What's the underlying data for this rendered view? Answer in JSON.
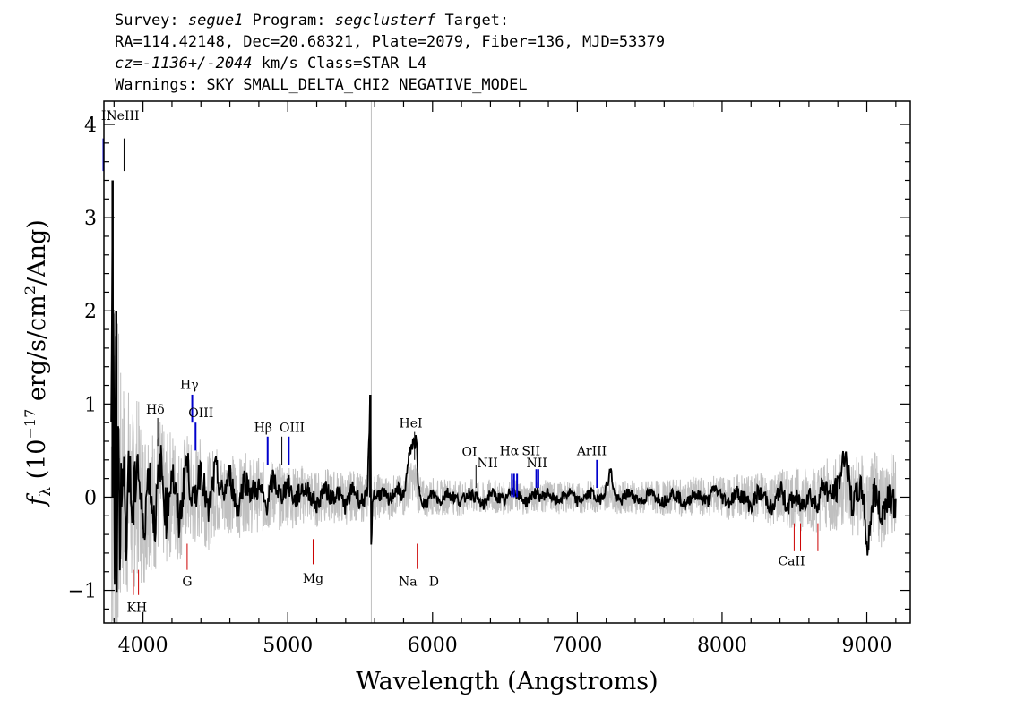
{
  "header": {
    "line1": {
      "survey_label": "Survey: ",
      "survey": "segue1",
      "program_label": " Program: ",
      "program": "segclusterf",
      "target_label": " Target:"
    },
    "line2": "RA=114.42148, Dec=20.68321, Plate=2079, Fiber=136, MJD=53379",
    "line3": {
      "cz": "cz=-1136+/-2044",
      "rest": " km/s Class=STAR L4"
    },
    "line4": "Warnings: SKY SMALL_DELTA_CHI2 NEGATIVE_MODEL"
  },
  "chart_data": {
    "type": "line",
    "xlabel": "Wavelength (Angstroms)",
    "ylabel_parts": {
      "f": "f",
      "sub": "λ",
      "pre": " (10",
      "exp": "−17",
      "mid": " erg/s/cm",
      "exp2": "2",
      "post": "/Ang)"
    },
    "xlim": [
      3730,
      9300
    ],
    "ylim": [
      -1.35,
      4.25
    ],
    "xticks": [
      4000,
      5000,
      6000,
      7000,
      8000,
      9000
    ],
    "yticks": [
      -1,
      0,
      1,
      2,
      3,
      4
    ],
    "ytick_labels": [
      "−1",
      "0",
      "1",
      "2",
      "3",
      "4"
    ],
    "sky_line_x": 5577,
    "colors": {
      "flux": "#000000",
      "error": "#c0c0c0",
      "emission": "#0000cc",
      "absorption": "#cc0000",
      "neutral": "#000000"
    },
    "series": [
      {
        "style": "error-band",
        "x": [
          3800,
          3850,
          3900,
          3950,
          4000,
          4100,
          4200,
          4300,
          4400,
          4600,
          4800,
          5000,
          5200,
          5400,
          5600,
          5800,
          6000,
          6500,
          7000,
          7500,
          8000,
          8300,
          8600,
          8900,
          9200
        ],
        "values": [
          2.6,
          1.3,
          1.1,
          1.0,
          0.9,
          0.75,
          0.7,
          0.6,
          0.55,
          0.45,
          0.4,
          0.35,
          0.3,
          0.28,
          0.25,
          0.22,
          0.2,
          0.18,
          0.17,
          0.18,
          0.22,
          0.28,
          0.35,
          0.45,
          0.5
        ]
      },
      {
        "style": "flux",
        "x": [
          3780,
          3790,
          3800,
          3805,
          3810,
          3815,
          3820,
          3830,
          3840,
          3860,
          3880,
          3900,
          3930,
          3960,
          4000,
          4040,
          4080,
          4120,
          4160,
          4200,
          4250,
          4300,
          4350,
          4400,
          4450,
          4500,
          4550,
          4600,
          4650,
          4700,
          4750,
          4800,
          4850,
          4900,
          4950,
          5000,
          5050,
          5100,
          5150,
          5200,
          5250,
          5300,
          5350,
          5400,
          5450,
          5500,
          5550,
          5570,
          5577,
          5585,
          5600,
          5650,
          5700,
          5750,
          5800,
          5850,
          5890,
          5900,
          5950,
          6000,
          6050,
          6100,
          6150,
          6200,
          6250,
          6300,
          6350,
          6400,
          6450,
          6500,
          6550,
          6600,
          6650,
          6700,
          6750,
          6800,
          6850,
          6900,
          6950,
          7000,
          7050,
          7100,
          7150,
          7200,
          7230,
          7260,
          7300,
          7350,
          7400,
          7450,
          7500,
          7550,
          7600,
          7650,
          7700,
          7750,
          7800,
          7850,
          7900,
          7950,
          8000,
          8050,
          8100,
          8150,
          8200,
          8250,
          8300,
          8350,
          8400,
          8450,
          8500,
          8550,
          8600,
          8650,
          8700,
          8750,
          8800,
          8850,
          8900,
          8950,
          8980,
          9000,
          9050,
          9100,
          9150,
          9200
        ],
        "values": [
          0.1,
          3.4,
          0.8,
          -0.5,
          1.0,
          2.0,
          -0.6,
          0.7,
          -0.4,
          0.6,
          -0.5,
          0.4,
          -0.3,
          0.5,
          -0.4,
          0.3,
          -0.3,
          0.4,
          -0.2,
          0.3,
          -0.3,
          0.4,
          -0.1,
          0.35,
          -0.2,
          0.3,
          0.0,
          0.25,
          -0.15,
          0.2,
          0.05,
          0.1,
          -0.1,
          0.2,
          0.0,
          0.15,
          -0.05,
          0.1,
          0.05,
          -0.1,
          0.1,
          0.0,
          0.05,
          -0.1,
          0.1,
          -0.05,
          0.0,
          1.1,
          -0.7,
          0.05,
          0.0,
          0.05,
          -0.05,
          0.1,
          0.0,
          0.55,
          0.6,
          0.1,
          -0.1,
          0.05,
          -0.05,
          0.05,
          0.0,
          -0.05,
          0.05,
          0.0,
          -0.1,
          0.05,
          0.0,
          -0.05,
          0.1,
          0.0,
          -0.05,
          0.05,
          0.0,
          0.05,
          -0.05,
          0.0,
          0.05,
          -0.05,
          0.0,
          0.05,
          -0.05,
          0.1,
          0.3,
          0.0,
          -0.05,
          0.05,
          0.0,
          -0.05,
          0.05,
          0.0,
          -0.05,
          0.05,
          0.0,
          -0.1,
          0.05,
          0.0,
          -0.05,
          0.1,
          0.0,
          -0.05,
          0.05,
          0.0,
          -0.1,
          0.05,
          0.0,
          -0.15,
          0.1,
          -0.1,
          0.0,
          -0.1,
          0.05,
          -0.1,
          0.15,
          0.0,
          0.1,
          0.5,
          -0.1,
          0.1,
          0.0,
          -0.6,
          0.1,
          -0.2,
          0.05,
          -0.1
        ]
      }
    ],
    "line_markers": [
      {
        "label": "II",
        "x": 3727,
        "y0": 3.5,
        "y1": 3.85,
        "kind": "emission",
        "lx": 3745,
        "ly": 4.05
      },
      {
        "label": "NeIII",
        "x": 3869,
        "y0": 3.5,
        "y1": 3.85,
        "kind": "neutral",
        "lx": 3860,
        "ly": 4.05
      },
      {
        "label": "Hδ",
        "x": 4102,
        "y0": 0.55,
        "y1": 0.85,
        "kind": "neutral",
        "lx": 4085,
        "ly": 0.9
      },
      {
        "label": "Hγ",
        "x": 4340,
        "y0": 0.8,
        "y1": 1.1,
        "kind": "emission",
        "lx": 4320,
        "ly": 1.16
      },
      {
        "label": "OIII",
        "x": 4363,
        "y0": 0.5,
        "y1": 0.8,
        "kind": "emission",
        "lx": 4400,
        "ly": 0.86
      },
      {
        "label": "Hβ",
        "x": 4861,
        "y0": 0.35,
        "y1": 0.65,
        "kind": "emission",
        "lx": 4830,
        "ly": 0.7
      },
      {
        "label": "OIII",
        "x": 4959,
        "y0": 0.35,
        "y1": 0.65,
        "kind": "neutral",
        "lx": 5030,
        "ly": 0.7
      },
      {
        "label": "OIII",
        "x": 5007,
        "y0": 0.35,
        "y1": 0.65,
        "kind": "emission",
        "lx": null,
        "ly": null
      },
      {
        "label": "HeI",
        "x": 5876,
        "y0": 0.4,
        "y1": 0.7,
        "kind": "neutral",
        "lx": 5850,
        "ly": 0.75
      },
      {
        "label": "OI",
        "x": 6300,
        "y0": 0.1,
        "y1": 0.35,
        "kind": "neutral",
        "lx": 6255,
        "ly": 0.44
      },
      {
        "label": "NII",
        "x": 6548,
        "y0": 0.0,
        "y1": 0.25,
        "kind": "emission",
        "lx": 6380,
        "ly": 0.32
      },
      {
        "label": "Hα",
        "x": 6563,
        "y0": 0.0,
        "y1": 0.25,
        "kind": "emission",
        "lx": 6530,
        "ly": 0.45
      },
      {
        "label": "NII",
        "x": 6584,
        "y0": 0.0,
        "y1": 0.25,
        "kind": "emission",
        "lx": 6720,
        "ly": 0.32
      },
      {
        "label": "SII",
        "x": 6717,
        "y0": 0.1,
        "y1": 0.3,
        "kind": "emission",
        "lx": 6680,
        "ly": 0.45
      },
      {
        "label": "SII",
        "x": 6731,
        "y0": 0.1,
        "y1": 0.3,
        "kind": "emission",
        "lx": null,
        "ly": null
      },
      {
        "label": "ArIII",
        "x": 7136,
        "y0": 0.1,
        "y1": 0.4,
        "kind": "emission",
        "lx": 7100,
        "ly": 0.45
      },
      {
        "label": "K",
        "x": 3934,
        "y0": -1.05,
        "y1": -0.78,
        "kind": "absorption",
        "lx": 3920,
        "ly": -1.23
      },
      {
        "label": "H",
        "x": 3969,
        "y0": -1.05,
        "y1": -0.78,
        "kind": "absorption",
        "lx": 3990,
        "ly": -1.23
      },
      {
        "label": "G",
        "x": 4305,
        "y0": -0.78,
        "y1": -0.5,
        "kind": "absorption",
        "lx": 4305,
        "ly": -0.95
      },
      {
        "label": "Mg",
        "x": 5175,
        "y0": -0.72,
        "y1": -0.45,
        "kind": "absorption",
        "lx": 5175,
        "ly": -0.92
      },
      {
        "label": "Na",
        "x": 5894,
        "y0": -0.77,
        "y1": -0.5,
        "kind": "absorption",
        "lx": 5830,
        "ly": -0.95
      },
      {
        "label": "D",
        "x": 5896,
        "y0": -0.77,
        "y1": -0.5,
        "kind": "absorption",
        "lx": 6010,
        "ly": -0.95
      },
      {
        "label": "CaII",
        "x": 8498,
        "y0": -0.58,
        "y1": -0.28,
        "kind": "absorption",
        "lx": 8480,
        "ly": -0.73
      },
      {
        "label": "CaII",
        "x": 8542,
        "y0": -0.58,
        "y1": -0.28,
        "kind": "absorption",
        "lx": null,
        "ly": null
      },
      {
        "label": "CaII",
        "x": 8662,
        "y0": -0.58,
        "y1": -0.28,
        "kind": "absorption",
        "lx": null,
        "ly": null
      }
    ]
  }
}
